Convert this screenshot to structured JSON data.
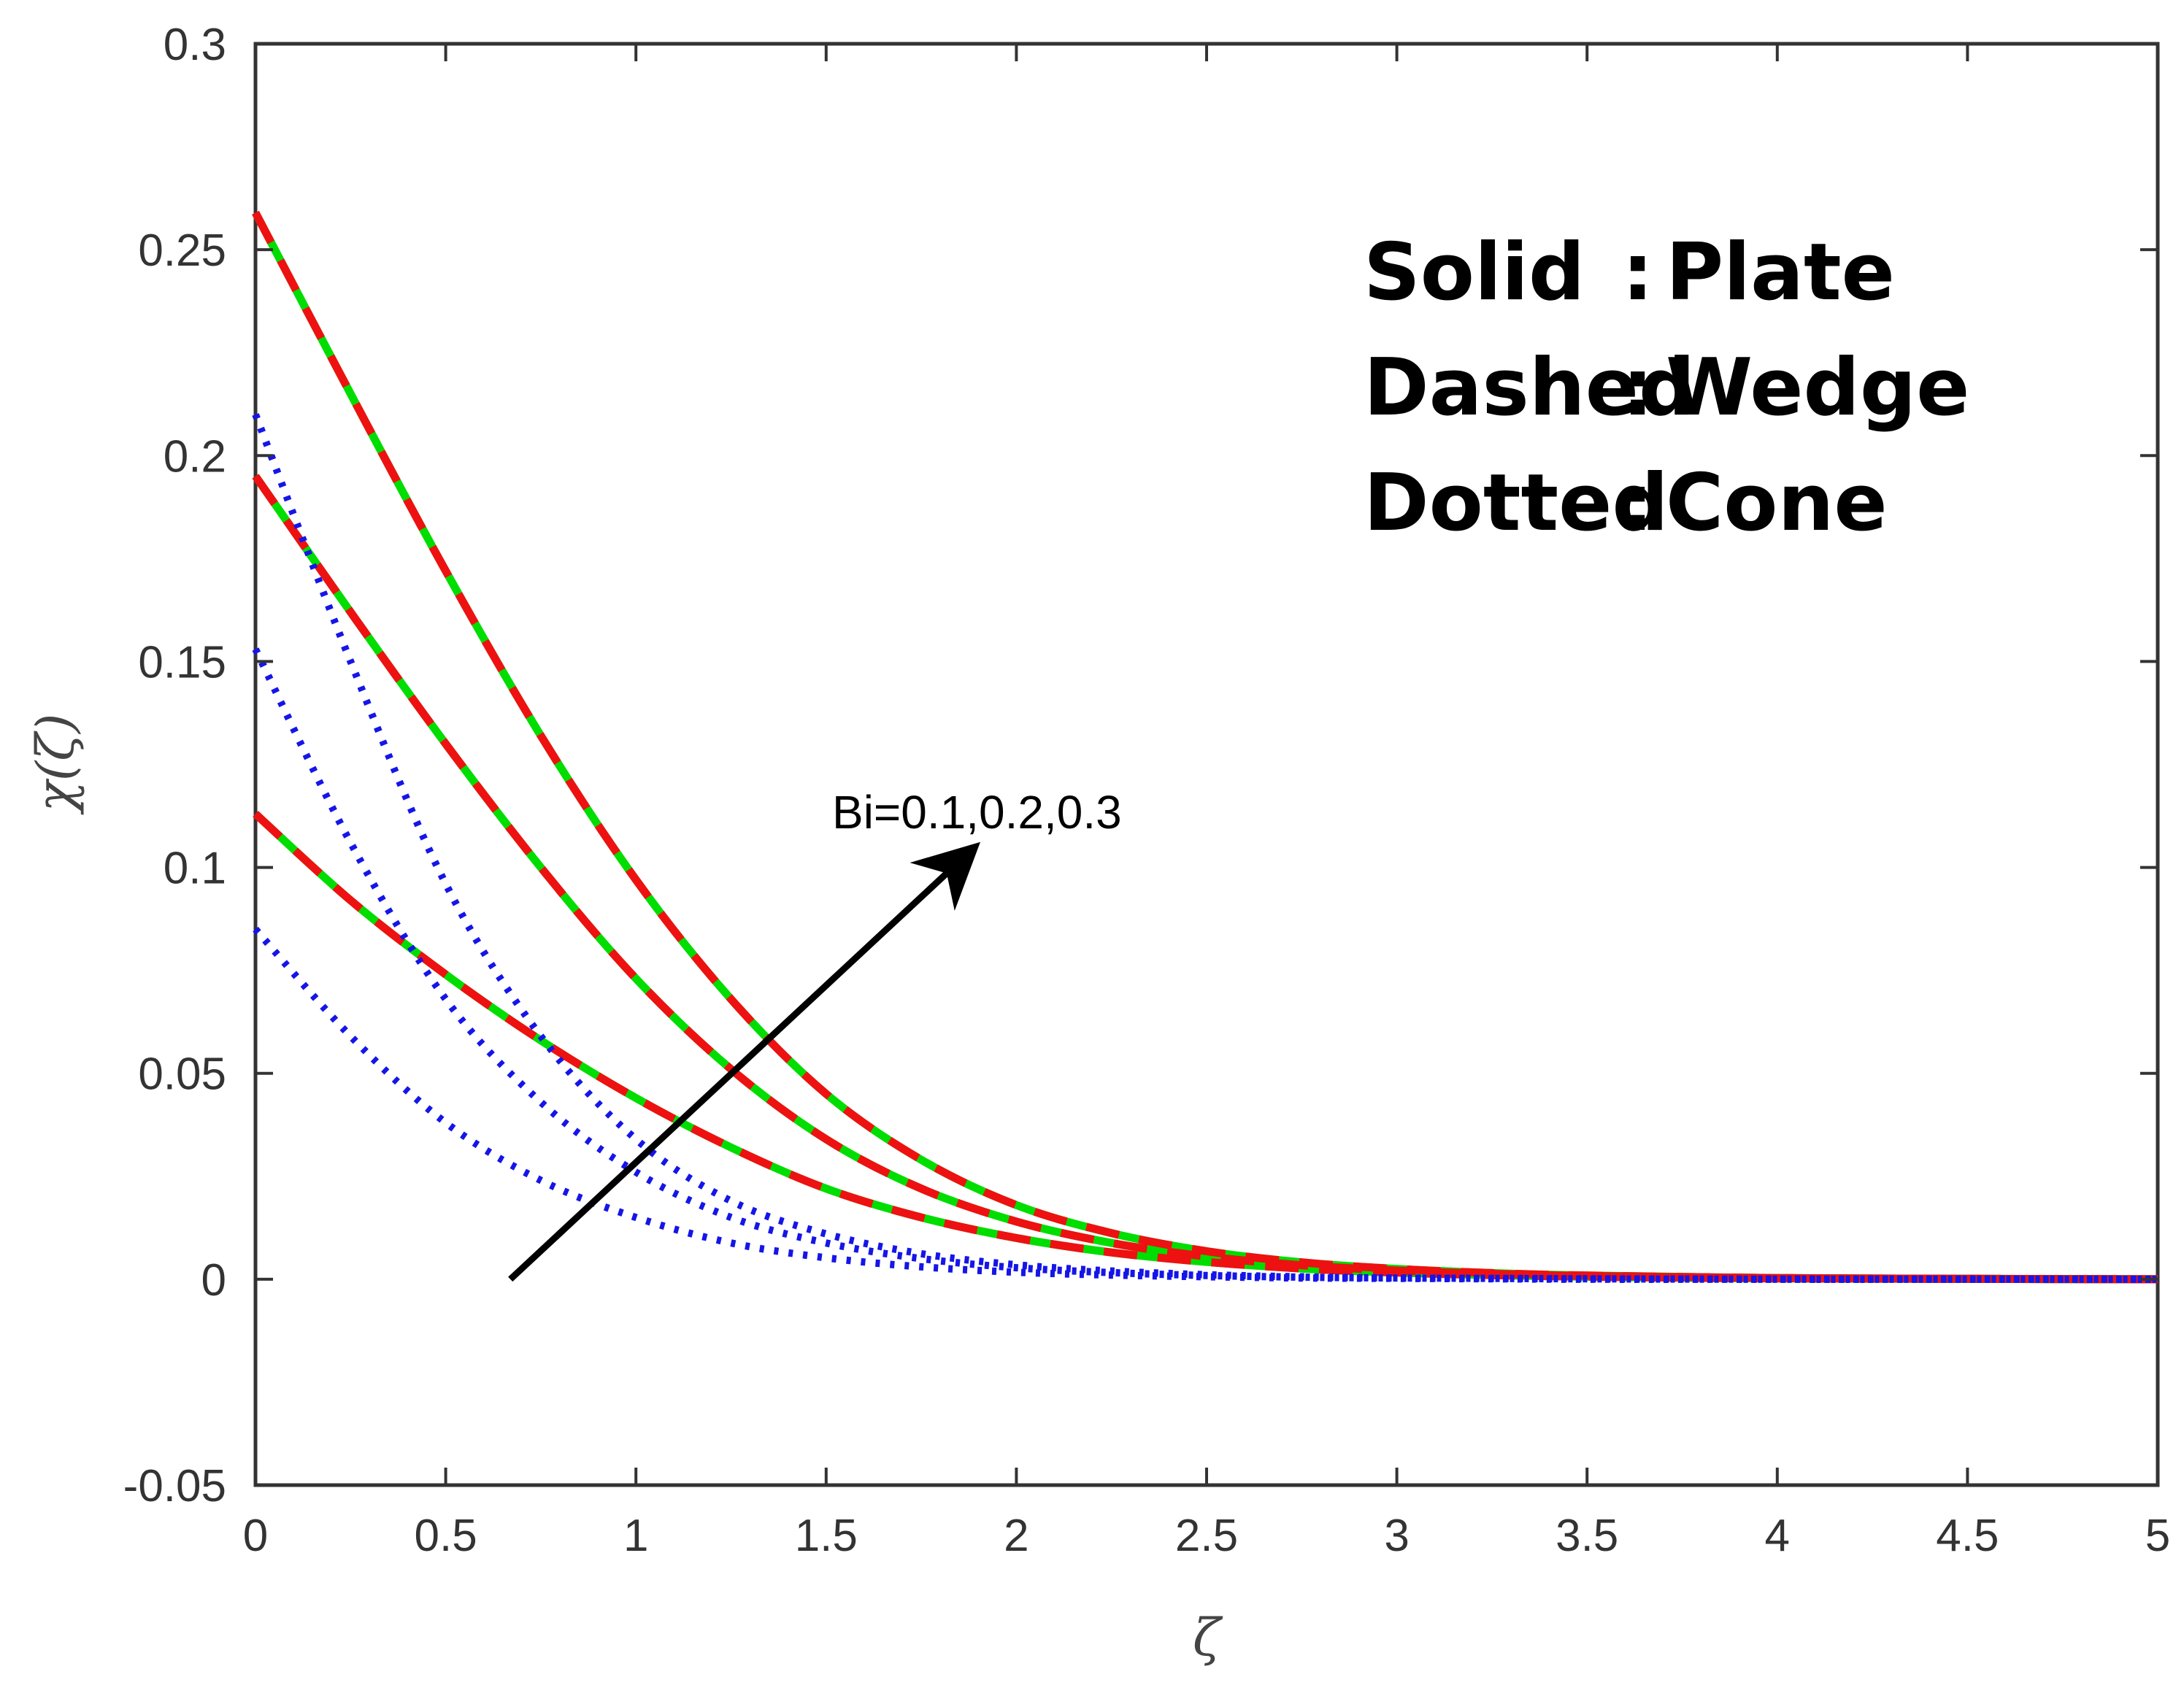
{
  "chart_data": {
    "type": "line",
    "xlabel": "ζ",
    "ylabel": "χ(ζ)",
    "xlim": [
      0,
      5
    ],
    "ylim": [
      -0.05,
      0.3
    ],
    "xticks": [
      "0",
      "0.5",
      "1",
      "1.5",
      "2",
      "2.5",
      "3",
      "3.5",
      "4",
      "4.5",
      "5"
    ],
    "yticks": [
      "-0.05",
      "0",
      "0.05",
      "0.1",
      "0.15",
      "0.2",
      "0.25",
      "0.3"
    ],
    "grid": false,
    "legend": [
      {
        "style": "Solid",
        "sep": ":",
        "body": "Plate"
      },
      {
        "style": "Dashed",
        "sep": ":",
        "body": "Wedge"
      },
      {
        "style": "Dotted",
        "sep": ":",
        "body": "Cone"
      }
    ],
    "annotation": {
      "text": "Bi=0.1,0.2,0.3",
      "arrow_from": [
        0.67,
        0.0
      ],
      "arrow_to": [
        1.88,
        0.104
      ]
    },
    "colors": {
      "plate": "#00dd00",
      "wedge": "#ee1111",
      "cone": "#1515e8",
      "arrow": "#000000",
      "axis": "#333333"
    },
    "x": [
      0,
      0.25,
      0.5,
      0.75,
      1,
      1.25,
      1.5,
      1.75,
      2,
      2.25,
      2.5,
      2.75,
      3,
      3.25,
      3.5,
      4,
      4.5,
      5
    ],
    "series": [
      {
        "style": "solid",
        "color": "#00dd00",
        "values": [
          0.113,
          0.092,
          0.074,
          0.058,
          0.044,
          0.032,
          0.022,
          0.015,
          0.01,
          0.0065,
          0.0042,
          0.0026,
          0.0016,
          0.001,
          0.0006,
          0.0002,
          0.0001,
          0.0
        ]
      },
      {
        "style": "solid",
        "color": "#00dd00",
        "values": [
          0.195,
          0.162,
          0.13,
          0.1,
          0.073,
          0.051,
          0.034,
          0.022,
          0.014,
          0.0088,
          0.0055,
          0.0034,
          0.0021,
          0.0013,
          0.0008,
          0.0003,
          0.0001,
          0.0
        ]
      },
      {
        "style": "solid",
        "color": "#00dd00",
        "values": [
          0.259,
          0.215,
          0.172,
          0.132,
          0.097,
          0.068,
          0.045,
          0.029,
          0.018,
          0.0112,
          0.0068,
          0.0041,
          0.0025,
          0.0015,
          0.0009,
          0.0003,
          0.0001,
          0.0
        ]
      },
      {
        "style": "dashed",
        "color": "#ee1111",
        "values": [
          0.113,
          0.092,
          0.074,
          0.058,
          0.044,
          0.032,
          0.022,
          0.015,
          0.01,
          0.0065,
          0.0042,
          0.0026,
          0.0016,
          0.001,
          0.0006,
          0.0002,
          0.0001,
          0.0
        ]
      },
      {
        "style": "dashed",
        "color": "#ee1111",
        "values": [
          0.195,
          0.162,
          0.13,
          0.1,
          0.073,
          0.051,
          0.034,
          0.022,
          0.014,
          0.0088,
          0.0055,
          0.0034,
          0.0021,
          0.0013,
          0.0008,
          0.0003,
          0.0001,
          0.0
        ]
      },
      {
        "style": "dashed",
        "color": "#ee1111",
        "values": [
          0.259,
          0.215,
          0.172,
          0.132,
          0.097,
          0.068,
          0.045,
          0.029,
          0.018,
          0.0112,
          0.0068,
          0.0041,
          0.0025,
          0.0015,
          0.0009,
          0.0003,
          0.0001,
          0.0
        ]
      },
      {
        "style": "dotted",
        "color": "#1515e8",
        "values": [
          0.085,
          0.059,
          0.038,
          0.024,
          0.015,
          0.0088,
          0.0052,
          0.003,
          0.0017,
          0.001,
          0.0006,
          0.0003,
          0.0002,
          0.0001,
          0.0,
          0.0,
          0.0,
          0.0
        ]
      },
      {
        "style": "dotted",
        "color": "#1515e8",
        "values": [
          0.153,
          0.106,
          0.068,
          0.043,
          0.026,
          0.015,
          0.0088,
          0.005,
          0.0028,
          0.0016,
          0.0009,
          0.0005,
          0.0003,
          0.0002,
          0.0001,
          0.0,
          0.0,
          0.0
        ]
      },
      {
        "style": "dotted",
        "color": "#1515e8",
        "values": [
          0.21,
          0.15,
          0.096,
          0.059,
          0.034,
          0.019,
          0.011,
          0.0062,
          0.0035,
          0.002,
          0.0011,
          0.0006,
          0.0003,
          0.0002,
          0.0001,
          0.0,
          0.0,
          0.0
        ]
      }
    ]
  }
}
